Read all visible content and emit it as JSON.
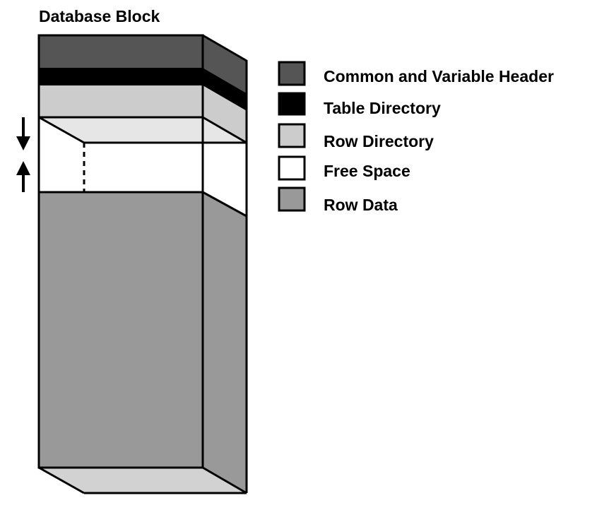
{
  "title": "Database Block",
  "colors": {
    "common_variable_header": "#555555",
    "table_directory": "#000000",
    "row_directory": "#cccccc",
    "free_space": "#ffffff",
    "row_data": "#999999",
    "top_face": "#e6e6e6",
    "bottom_face": "#d2d2d2",
    "outline": "#000000"
  },
  "legend": [
    {
      "key": "common_variable_header",
      "label": "Common and Variable Header"
    },
    {
      "key": "table_directory",
      "label": "Table Directory"
    },
    {
      "key": "row_directory",
      "label": "Row Directory"
    },
    {
      "key": "free_space",
      "label": "Free Space"
    },
    {
      "key": "row_data",
      "label": "Row Data"
    }
  ],
  "arrows": [
    {
      "name": "down-arrow-icon",
      "direction": "down"
    },
    {
      "name": "up-arrow-icon",
      "direction": "up"
    }
  ]
}
